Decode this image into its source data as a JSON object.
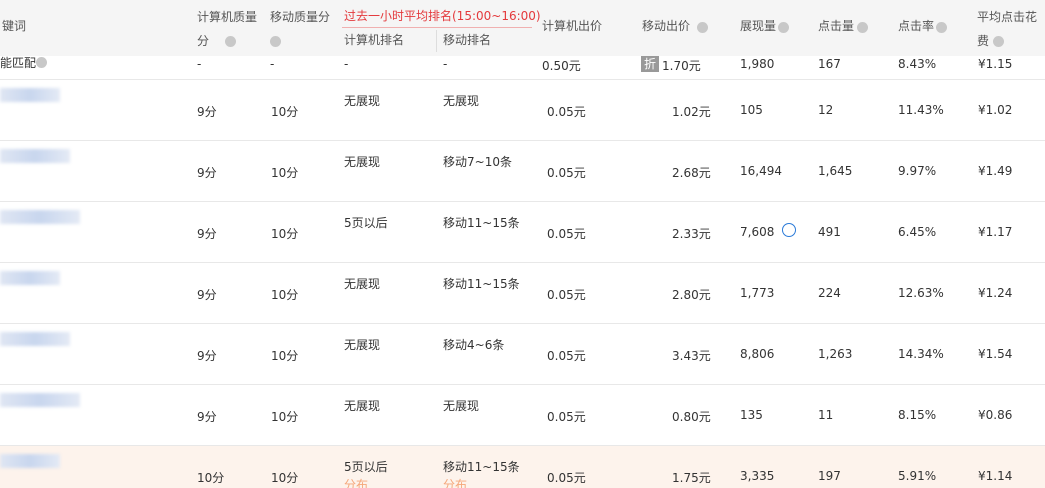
{
  "header": {
    "columns": [
      "键词",
      "计算机质量分",
      "移动质量分",
      "计算机出价",
      "移动出价",
      "展现量",
      "点击量",
      "点击率",
      "平均点击花费"
    ],
    "rank_group": "过去一小时平均排名(15:00~16:00)",
    "rank_sub": [
      "计算机排名",
      "移动排名"
    ]
  },
  "match_row": {
    "keyword": "能匹配",
    "cells": [
      "-",
      "-",
      "-",
      "-",
      "0.50元",
      "1.70元",
      "1,980",
      "167",
      "8.43%",
      "¥1.15"
    ],
    "discount_badge": "折"
  },
  "rows": [
    [
      "9分",
      "10分",
      "无展现",
      "无展现",
      "0.05元",
      "1.02元",
      "105",
      "12",
      "11.43%",
      "¥1.02"
    ],
    [
      "9分",
      "10分",
      "无展现",
      "移动7~10条",
      "0.05元",
      "2.68元",
      "16,494",
      "1,645",
      "9.97%",
      "¥1.49"
    ],
    [
      "9分",
      "10分",
      "5页以后",
      "移动11~15条",
      "0.05元",
      "2.33元",
      "7,608",
      "491",
      "6.45%",
      "¥1.17"
    ],
    [
      "9分",
      "10分",
      "无展现",
      "移动11~15条",
      "0.05元",
      "2.80元",
      "1,773",
      "224",
      "12.63%",
      "¥1.24"
    ],
    [
      "9分",
      "10分",
      "无展现",
      "移动4~6条",
      "0.05元",
      "3.43元",
      "8,806",
      "1,263",
      "14.34%",
      "¥1.54"
    ],
    [
      "9分",
      "10分",
      "无展现",
      "无展现",
      "0.05元",
      "0.80元",
      "135",
      "11",
      "8.15%",
      "¥0.86"
    ],
    [
      "10分",
      "10分",
      "5页以后",
      "移动11~15条",
      "0.05元",
      "1.75元",
      "3,335",
      "197",
      "5.91%",
      "¥1.14"
    ]
  ],
  "rank_note": "分布"
}
